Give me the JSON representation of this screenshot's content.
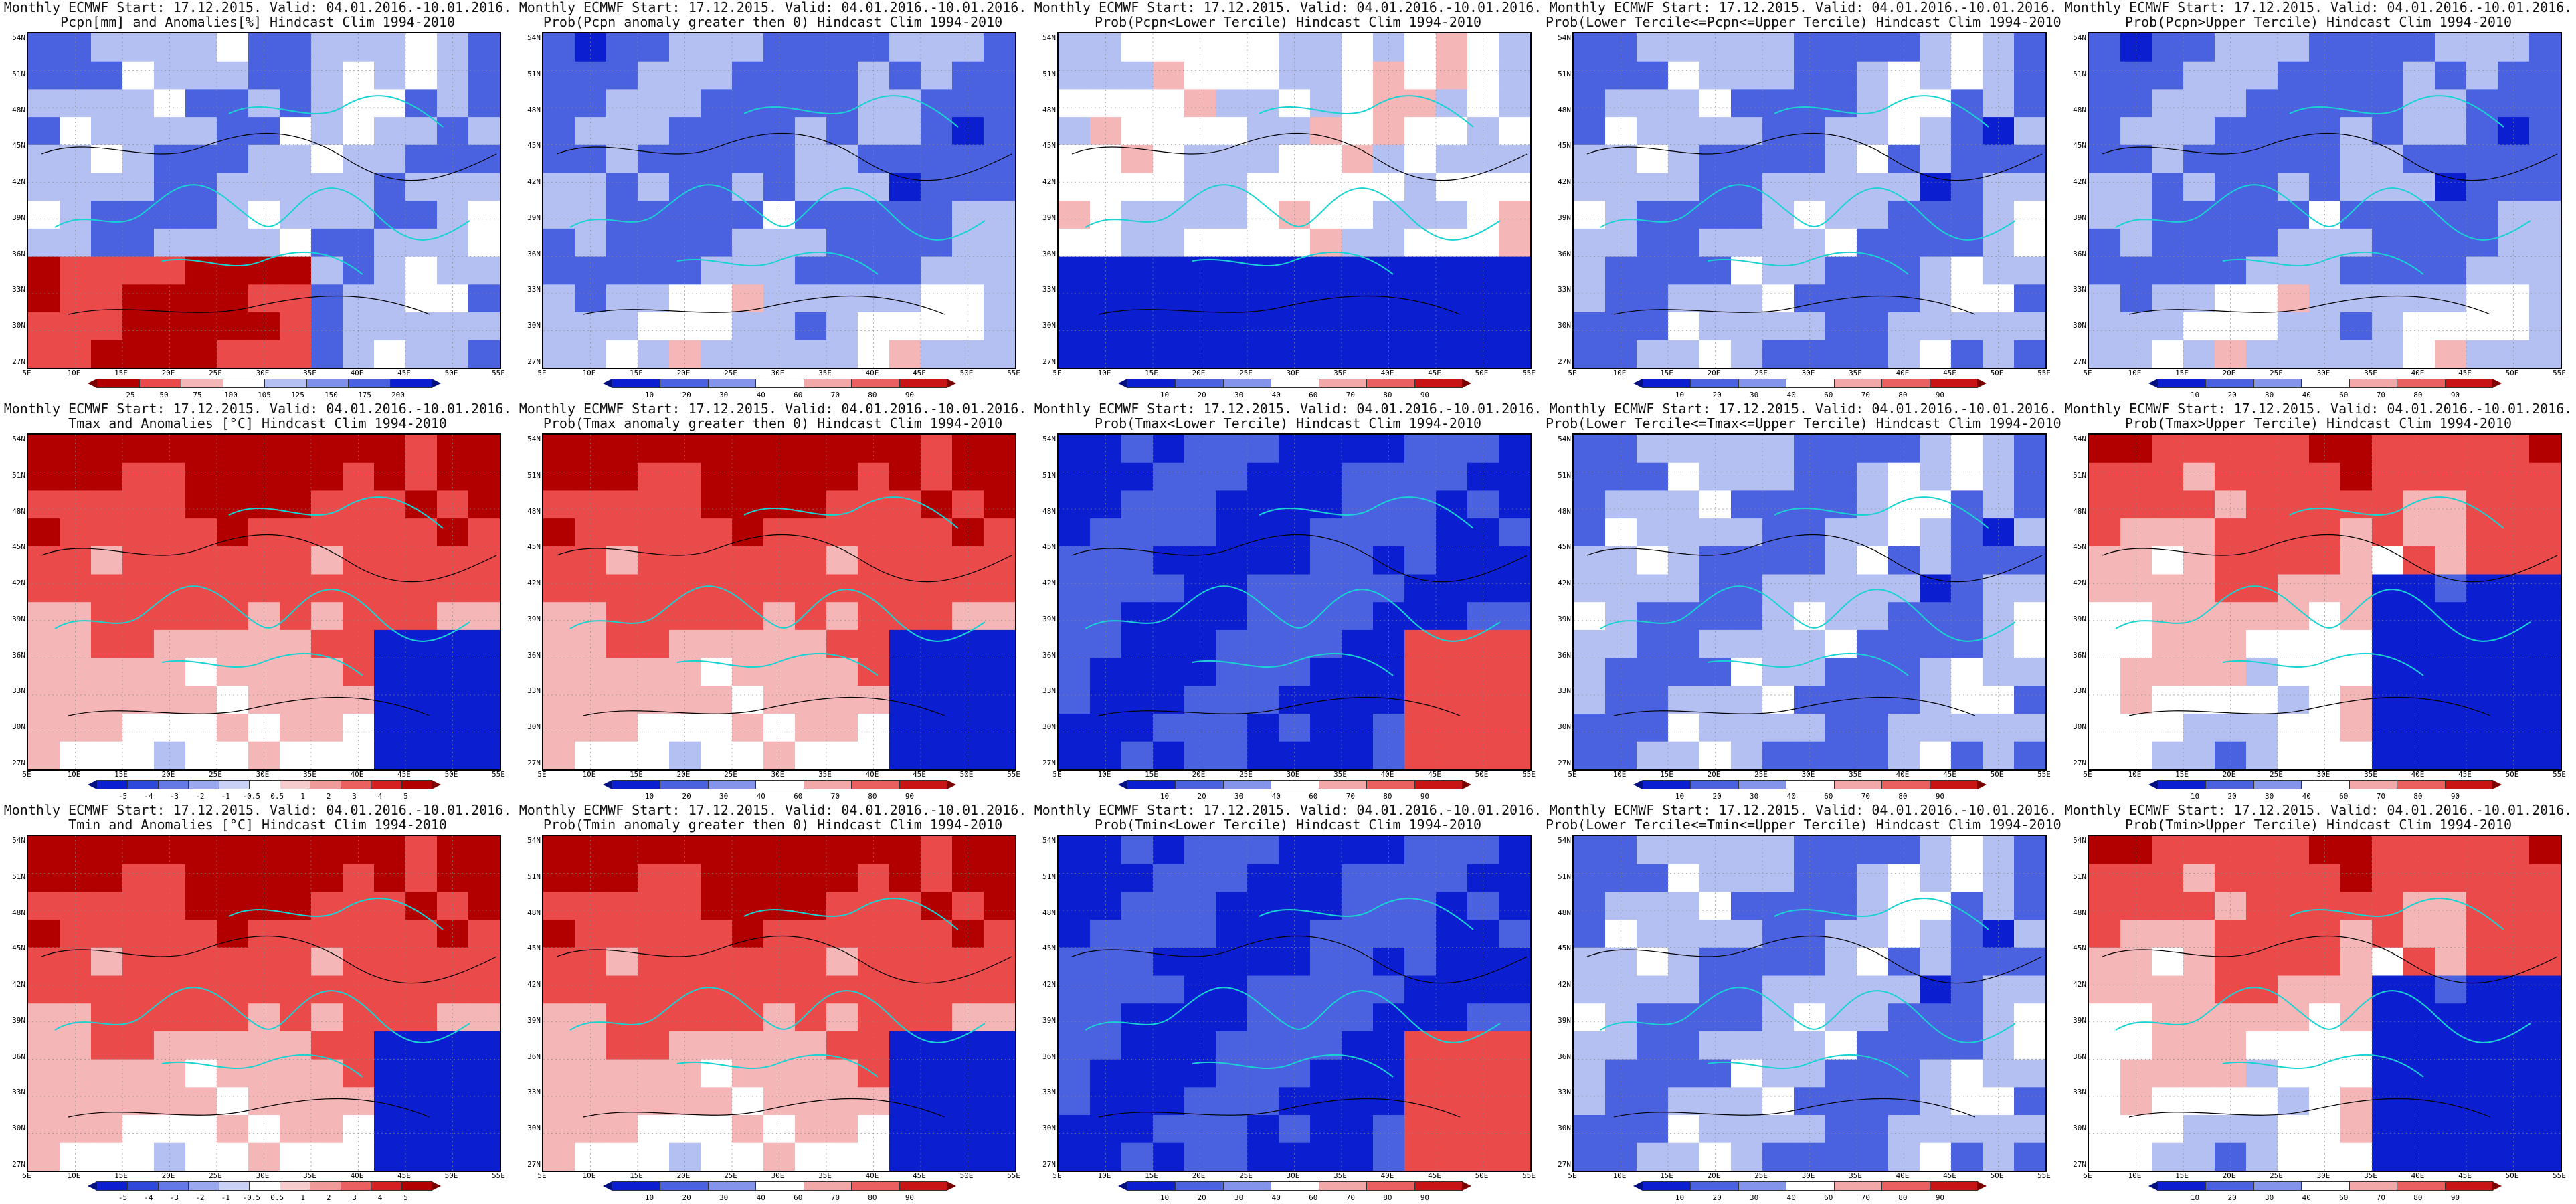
{
  "colors": {
    "deep_blue": "#0b1fd1",
    "mid_blue": "#4a62e0",
    "light_blue": "#b4c0f2",
    "white": "#ffffff",
    "light_red": "#f4b6b6",
    "mid_red": "#ea4a4a",
    "deep_red": "#b20000",
    "coast": "#19d3d3",
    "contour": "#000000"
  },
  "lat_labels": [
    "54N",
    "51N",
    "48N",
    "45N",
    "42N",
    "39N",
    "36N",
    "33N",
    "30N",
    "27N"
  ],
  "lon_labels": [
    "5E",
    "10E",
    "15E",
    "20E",
    "25E",
    "30E",
    "35E",
    "40E",
    "45E",
    "50E",
    "55E"
  ],
  "colorbars": {
    "pcpn_anom": [
      "25",
      "50",
      "75",
      "100",
      "105",
      "125",
      "150",
      "175",
      "200"
    ],
    "temp_anom": [
      "-5",
      "-4",
      "-3",
      "-2",
      "-1",
      "-0.5",
      "0.5",
      "1",
      "2",
      "3",
      "4",
      "5"
    ],
    "prob": [
      "10",
      "20",
      "30",
      "40",
      "60",
      "70",
      "80",
      "90"
    ]
  },
  "panels": [
    {
      "title1": "Monthly ECMWF Start: 17.12.2015. Valid: 04.01.2016.-10.01.2016.",
      "title2": "Pcpn[mm] and Anomalies[%] Hindcast Clim 1994-2010",
      "cbar": "pcpn_anom",
      "field": "pcpn_anom"
    },
    {
      "title1": "Monthly ECMWF Start: 17.12.2015. Valid: 04.01.2016.-10.01.2016.",
      "title2": "Prob(Pcpn anomaly greater then 0) Hindcast Clim 1994-2010",
      "cbar": "prob",
      "field": "blue_wet"
    },
    {
      "title1": "Monthly ECMWF Start: 17.12.2015. Valid: 04.01.2016.-10.01.2016.",
      "title2": "Prob(Pcpn<Lower Tercile) Hindcast Clim 1994-2010",
      "cbar": "prob",
      "field": "blue_south"
    },
    {
      "title1": "Monthly ECMWF Start: 17.12.2015. Valid: 04.01.2016.-10.01.2016.",
      "title2": "Prob(Lower Tercile<=Pcpn<=Upper Tercile) Hindcast Clim 1994-2010",
      "cbar": "prob",
      "field": "blue_mix"
    },
    {
      "title1": "Monthly ECMWF Start: 17.12.2015. Valid: 04.01.2016.-10.01.2016.",
      "title2": "Prob(Pcpn>Upper Tercile) Hindcast Clim 1994-2010",
      "cbar": "prob",
      "field": "blue_wet"
    },
    {
      "title1": "Monthly ECMWF Start: 17.12.2015. Valid: 04.01.2016.-10.01.2016.",
      "title2": "Tmax and Anomalies [°C] Hindcast Clim 1994-2010",
      "cbar": "temp_anom",
      "field": "red_north"
    },
    {
      "title1": "Monthly ECMWF Start: 17.12.2015. Valid: 04.01.2016.-10.01.2016.",
      "title2": "Prob(Tmax anomaly greater then 0) Hindcast Clim 1994-2010",
      "cbar": "prob",
      "field": "red_north"
    },
    {
      "title1": "Monthly ECMWF Start: 17.12.2015. Valid: 04.01.2016.-10.01.2016.",
      "title2": "Prob(Tmax<Lower Tercile) Hindcast Clim 1994-2010",
      "cbar": "prob",
      "field": "blue_se_red"
    },
    {
      "title1": "Monthly ECMWF Start: 17.12.2015. Valid: 04.01.2016.-10.01.2016.",
      "title2": "Prob(Lower Tercile<=Tmax<=Upper Tercile) Hindcast Clim 1994-2010",
      "cbar": "prob",
      "field": "blue_mix"
    },
    {
      "title1": "Monthly ECMWF Start: 17.12.2015. Valid: 04.01.2016.-10.01.2016.",
      "title2": "Prob(Tmax>Upper Tercile) Hindcast Clim 1994-2010",
      "cbar": "prob",
      "field": "red_north_blue_se"
    },
    {
      "title1": "Monthly ECMWF Start: 17.12.2015. Valid: 04.01.2016.-10.01.2016.",
      "title2": "Tmin and Anomalies [°C] Hindcast Clim 1994-2010",
      "cbar": "temp_anom",
      "field": "red_north"
    },
    {
      "title1": "Monthly ECMWF Start: 17.12.2015. Valid: 04.01.2016.-10.01.2016.",
      "title2": "Prob(Tmin anomaly greater then 0) Hindcast Clim 1994-2010",
      "cbar": "prob",
      "field": "red_north"
    },
    {
      "title1": "Monthly ECMWF Start: 17.12.2015. Valid: 04.01.2016.-10.01.2016.",
      "title2": "Prob(Tmin<Lower Tercile) Hindcast Clim 1994-2010",
      "cbar": "prob",
      "field": "blue_se_red"
    },
    {
      "title1": "Monthly ECMWF Start: 17.12.2015. Valid: 04.01.2016.-10.01.2016.",
      "title2": "Prob(Lower Tercile<=Tmin<=Upper Tercile) Hindcast Clim 1994-2010",
      "cbar": "prob",
      "field": "blue_mix"
    },
    {
      "title1": "Monthly ECMWF Start: 17.12.2015. Valid: 04.01.2016.-10.01.2016.",
      "title2": "Prob(Tmin>Upper Tercile) Hindcast Clim 1994-2010",
      "cbar": "prob",
      "field": "red_north_blue_se"
    }
  ]
}
